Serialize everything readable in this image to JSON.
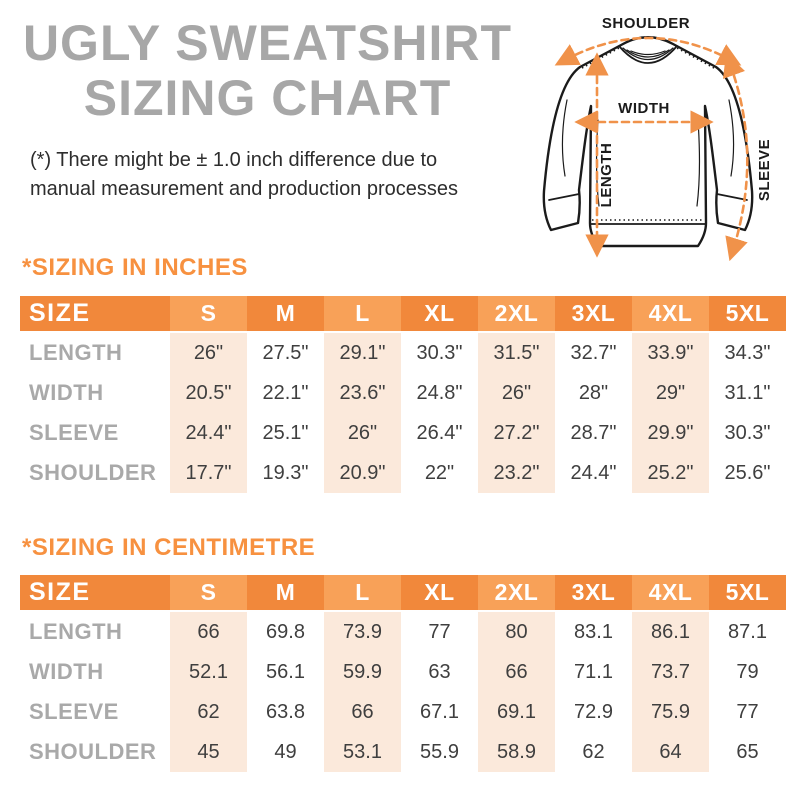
{
  "title_line1": "UGLY SWEATSHIRT",
  "title_line2": "SIZING CHART",
  "note_line1": "(*) There might be ± 1.0 inch difference due to",
  "note_line2": "manual measurement and production processes",
  "diagram": {
    "shoulder_label": "SHOULDER",
    "width_label": "WIDTH",
    "length_label": "LENGTH",
    "sleeve_label": "SLEEVE"
  },
  "colors": {
    "header_orange": "#F1883B",
    "header_orange_light": "#F8A158",
    "peach": "#FBE9DB",
    "title_gray": "#A7A7A7",
    "label_gray": "#A9A9A9",
    "text_dark": "#3F3F3F",
    "note_dark": "#2D2D2D",
    "accent_orange": "#F79140",
    "arrow_orange": "#F0924A",
    "outline": "#1B1B1B"
  },
  "tables": [
    {
      "section_title": "*SIZING IN INCHES",
      "header": [
        "SIZE",
        "S",
        "M",
        "L",
        "XL",
        "2XL",
        "3XL",
        "4XL",
        "5XL"
      ],
      "rows": [
        {
          "label": "LENGTH",
          "values": [
            "26\"",
            "27.5\"",
            "29.1\"",
            "30.3\"",
            "31.5\"",
            "32.7\"",
            "33.9\"",
            "34.3\""
          ]
        },
        {
          "label": "WIDTH",
          "values": [
            "20.5\"",
            "22.1\"",
            "23.6\"",
            "24.8\"",
            "26\"",
            "28\"",
            "29\"",
            "31.1\""
          ]
        },
        {
          "label": "SLEEVE",
          "values": [
            "24.4\"",
            "25.1\"",
            "26\"",
            "26.4\"",
            "27.2\"",
            "28.7\"",
            "29.9\"",
            "30.3\""
          ]
        },
        {
          "label": "SHOULDER",
          "values": [
            "17.7\"",
            "19.3\"",
            "20.9\"",
            "22\"",
            "23.2\"",
            "24.4\"",
            "25.2\"",
            "25.6\""
          ]
        }
      ]
    },
    {
      "section_title": "*SIZING IN CENTIMETRE",
      "header": [
        "SIZE",
        "S",
        "M",
        "L",
        "XL",
        "2XL",
        "3XL",
        "4XL",
        "5XL"
      ],
      "rows": [
        {
          "label": "LENGTH",
          "values": [
            "66",
            "69.8",
            "73.9",
            "77",
            "80",
            "83.1",
            "86.1",
            "87.1"
          ]
        },
        {
          "label": "WIDTH",
          "values": [
            "52.1",
            "56.1",
            "59.9",
            "63",
            "66",
            "71.1",
            "73.7",
            "79"
          ]
        },
        {
          "label": "SLEEVE",
          "values": [
            "62",
            "63.8",
            "66",
            "67.1",
            "69.1",
            "72.9",
            "75.9",
            "77"
          ]
        },
        {
          "label": "SHOULDER",
          "values": [
            "45",
            "49",
            "53.1",
            "55.9",
            "58.9",
            "62",
            "64",
            "65"
          ]
        }
      ]
    }
  ]
}
